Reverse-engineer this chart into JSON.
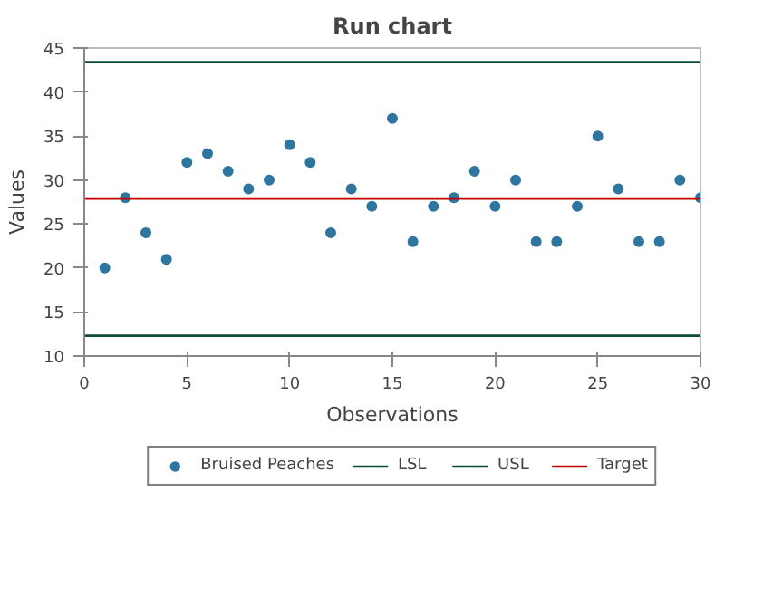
{
  "chart_data": {
    "type": "scatter",
    "title": "Run chart",
    "xlabel": "Observations",
    "ylabel": "Values",
    "xlim": [
      0,
      30
    ],
    "xticks": [
      0,
      5,
      10,
      15,
      20,
      25,
      30
    ],
    "ylim": [
      10,
      45
    ],
    "yticks": [
      10,
      15,
      20,
      25,
      30,
      35,
      40,
      45
    ],
    "grid": false,
    "legend": "bottom",
    "series": [
      {
        "name": "Bruised Peaches",
        "color": "#2e75a0",
        "marker": "circle",
        "x": [
          1,
          2,
          3,
          4,
          5,
          6,
          7,
          8,
          9,
          10,
          11,
          12,
          13,
          14,
          15,
          16,
          17,
          18,
          19,
          20,
          21,
          22,
          23,
          24,
          25,
          26,
          27,
          28,
          29,
          30
        ],
        "values": [
          20,
          28,
          24,
          21,
          32,
          33,
          31,
          29,
          30,
          34,
          32,
          24,
          29,
          27,
          37,
          23,
          27,
          28,
          31,
          27,
          30,
          23,
          23,
          27,
          35,
          29,
          23,
          23,
          30,
          28
        ]
      },
      {
        "name": "LSL",
        "type": "line",
        "color": "#0f4a3a",
        "x": [
          0,
          30
        ],
        "values": [
          12.3,
          12.3
        ]
      },
      {
        "name": "USL",
        "type": "line",
        "color": "#0f4a3a",
        "x": [
          0,
          30
        ],
        "values": [
          43.4,
          43.4
        ]
      },
      {
        "name": "Target",
        "type": "line",
        "color": "#c00000",
        "x": [
          0,
          30
        ],
        "values": [
          27.9,
          27.9
        ]
      }
    ]
  }
}
